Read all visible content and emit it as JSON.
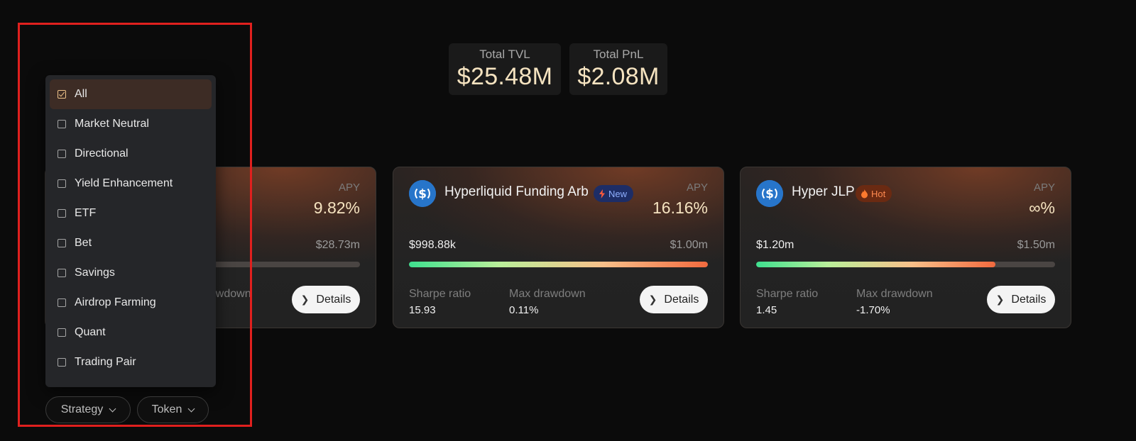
{
  "stats": {
    "tvl_label": "Total TVL",
    "tvl_value": "$25.48M",
    "pnl_label": "Total PnL",
    "pnl_value": "$2.08M"
  },
  "cards": [
    {
      "name": "",
      "apy_label": "APY",
      "apy": "9.82%",
      "tvl_current": "",
      "tvl_cap": "$28.73m",
      "progress": 0,
      "sharpe_label": "",
      "sharpe": "",
      "drawdown_label": "Max drawdown",
      "drawdown": "",
      "details_label": "Details"
    },
    {
      "name": "Hyperliquid Funding Arb",
      "badge": "New",
      "apy_label": "APY",
      "apy": "16.16%",
      "tvl_current": "$998.88k",
      "tvl_cap": "$1.00m",
      "progress": 0.999,
      "sharpe_label": "Sharpe ratio",
      "sharpe": "15.93",
      "drawdown_label": "Max drawdown",
      "drawdown": "0.11%",
      "details_label": "Details"
    },
    {
      "name": "Hyper JLP",
      "badge": "Hot",
      "apy_label": "APY",
      "apy": "∞%",
      "tvl_current": "$1.20m",
      "tvl_cap": "$1.50m",
      "progress": 0.8,
      "sharpe_label": "Sharpe ratio",
      "sharpe": "1.45",
      "drawdown_label": "Max drawdown",
      "drawdown": "-1.70%",
      "details_label": "Details"
    }
  ],
  "strategy_menu": {
    "options": [
      "All",
      "Market Neutral",
      "Directional",
      "Yield Enhancement",
      "ETF",
      "Bet",
      "Savings",
      "Airdrop Farming",
      "Quant",
      "Trading Pair"
    ],
    "selected": "All"
  },
  "filters": {
    "strategy_label": "Strategy",
    "token_label": "Token"
  },
  "colors": {
    "accent": "#f5e3c0",
    "highlight": "#e0201e",
    "coin": "#2775ca",
    "new_badge": "#1d2d66",
    "hot_badge": "#6a2a12"
  },
  "icons": {
    "coin": "usdc-icon",
    "new": "lightning-icon",
    "hot": "flame-icon",
    "details": "chevron-right-icon",
    "filter": "chevron-down-icon"
  }
}
